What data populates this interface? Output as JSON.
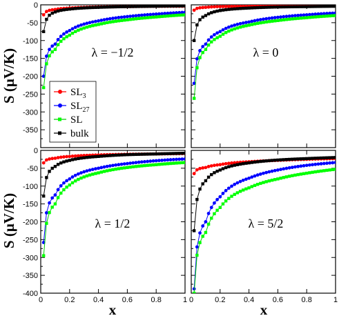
{
  "figure": {
    "ylabel_main": "S (",
    "ylabel_mu": "μ",
    "ylabel_rest": "V/K)",
    "xlabel": "x"
  },
  "legend": {
    "items": [
      {
        "label": "SL",
        "sub": "3",
        "color": "#ff0000"
      },
      {
        "label": "SL",
        "sub": "27",
        "color": "#0000ff"
      },
      {
        "label": "SL",
        "sub": "",
        "color": "#00ff00"
      },
      {
        "label": "bulk",
        "sub": "",
        "color": "#000000"
      }
    ]
  },
  "chart_data": [
    {
      "type": "line",
      "panel": "top-left",
      "annotation": "λ = −1/2",
      "xlim": [
        0,
        1
      ],
      "ylim": [
        -400,
        0
      ],
      "xticks": [
        "0",
        "0.2",
        "0.4",
        "0.6",
        "0.8",
        "1"
      ],
      "yticks": [
        "0",
        "-50",
        "-100",
        "-150",
        "-200",
        "-250",
        "-300",
        "-350"
      ],
      "series": [
        {
          "name": "SL3",
          "color": "#ff0000",
          "x": [
            0.02,
            0.1,
            0.2,
            0.4,
            0.6,
            0.8,
            1.0
          ],
          "values": [
            -28,
            -13,
            -9,
            -6,
            -5,
            -4,
            -4
          ]
        },
        {
          "name": "SL27",
          "color": "#0000ff",
          "x": [
            0.02,
            0.1,
            0.2,
            0.4,
            0.6,
            0.8,
            1.0
          ],
          "values": [
            -200,
            -110,
            -72,
            -45,
            -33,
            -26,
            -21
          ]
        },
        {
          "name": "SL",
          "color": "#00ff00",
          "x": [
            0.02,
            0.1,
            0.2,
            0.4,
            0.6,
            0.8,
            1.0
          ],
          "values": [
            -232,
            -125,
            -85,
            -55,
            -42,
            -34,
            -28
          ]
        },
        {
          "name": "bulk",
          "color": "#000000",
          "x": [
            0.02,
            0.1,
            0.2,
            0.4,
            0.6,
            0.8,
            1.0
          ],
          "values": [
            -75,
            -20,
            -12,
            -7,
            -5,
            -4,
            -3
          ]
        }
      ]
    },
    {
      "type": "line",
      "panel": "top-right",
      "annotation": "λ = 0",
      "xlim": [
        0,
        1
      ],
      "ylim": [
        -400,
        0
      ],
      "xticks": [
        "0",
        "0.2",
        "0.4",
        "0.6",
        "0.8",
        "1"
      ],
      "yticks": [
        "0",
        "-50",
        "-100",
        "-150",
        "-200",
        "-250",
        "-300",
        "-350"
      ],
      "series": [
        {
          "name": "SL3",
          "color": "#ff0000",
          "x": [
            0.02,
            0.1,
            0.2,
            0.4,
            0.6,
            0.8,
            1.0
          ],
          "values": [
            -15,
            -7,
            -5,
            -4,
            -3,
            -3,
            -3
          ]
        },
        {
          "name": "SL27",
          "color": "#0000ff",
          "x": [
            0.02,
            0.1,
            0.2,
            0.4,
            0.6,
            0.8,
            1.0
          ],
          "values": [
            -220,
            -110,
            -75,
            -48,
            -35,
            -28,
            -23
          ]
        },
        {
          "name": "SL",
          "color": "#00ff00",
          "x": [
            0.02,
            0.1,
            0.2,
            0.4,
            0.6,
            0.8,
            1.0
          ],
          "values": [
            -262,
            -125,
            -88,
            -57,
            -44,
            -36,
            -30
          ]
        },
        {
          "name": "bulk",
          "color": "#000000",
          "x": [
            0.02,
            0.1,
            0.2,
            0.4,
            0.6,
            0.8,
            1.0
          ],
          "values": [
            -100,
            -30,
            -16,
            -9,
            -6,
            -5,
            -4
          ]
        }
      ]
    },
    {
      "type": "line",
      "panel": "bottom-left",
      "annotation": "λ = 1/2",
      "xlim": [
        0,
        1
      ],
      "ylim": [
        -400,
        0
      ],
      "xticks": [
        "0",
        "0.2",
        "0.4",
        "0.6",
        "0.8",
        "1"
      ],
      "yticks": [
        "0",
        "-50",
        "-100",
        "-150",
        "-200",
        "-250",
        "-300",
        "-350",
        "-400"
      ],
      "series": [
        {
          "name": "SL3",
          "color": "#ff0000",
          "x": [
            0.02,
            0.1,
            0.2,
            0.4,
            0.6,
            0.8,
            1.0
          ],
          "values": [
            -35,
            -22,
            -17,
            -13,
            -11,
            -10,
            -9
          ]
        },
        {
          "name": "SL27",
          "color": "#0000ff",
          "x": [
            0.02,
            0.1,
            0.2,
            0.4,
            0.6,
            0.8,
            1.0
          ],
          "values": [
            -258,
            -125,
            -80,
            -50,
            -37,
            -29,
            -24
          ]
        },
        {
          "name": "SL",
          "color": "#00ff00",
          "x": [
            0.02,
            0.1,
            0.2,
            0.4,
            0.6,
            0.8,
            1.0
          ],
          "values": [
            -295,
            -150,
            -97,
            -63,
            -48,
            -40,
            -34
          ]
        },
        {
          "name": "bulk",
          "color": "#000000",
          "x": [
            0.02,
            0.1,
            0.2,
            0.4,
            0.6,
            0.8,
            1.0
          ],
          "values": [
            -128,
            -45,
            -28,
            -17,
            -12,
            -10,
            -8
          ]
        }
      ]
    },
    {
      "type": "line",
      "panel": "bottom-right",
      "annotation": "λ = 5/2",
      "xlim": [
        0,
        1
      ],
      "ylim": [
        -400,
        0
      ],
      "xticks": [
        "0",
        "0.2",
        "0.4",
        "0.6",
        "0.8",
        "1"
      ],
      "yticks": [
        "0",
        "-50",
        "-100",
        "-150",
        "-200",
        "-250",
        "-300",
        "-350",
        "-400"
      ],
      "series": [
        {
          "name": "SL3",
          "color": "#ff0000",
          "x": [
            0.02,
            0.1,
            0.2,
            0.4,
            0.6,
            0.8,
            1.0
          ],
          "values": [
            -65,
            -48,
            -40,
            -32,
            -28,
            -25,
            -23
          ]
        },
        {
          "name": "SL27",
          "color": "#0000ff",
          "x": [
            0.02,
            0.1,
            0.2,
            0.4,
            0.6,
            0.8,
            1.0
          ],
          "values": [
            -388,
            -200,
            -130,
            -78,
            -55,
            -42,
            -34
          ]
        },
        {
          "name": "SL",
          "color": "#00ff00",
          "x": [
            0.02,
            0.1,
            0.2,
            0.4,
            0.6,
            0.8,
            1.0
          ],
          "values": [
            -400,
            -230,
            -160,
            -105,
            -80,
            -64,
            -53
          ]
        },
        {
          "name": "bulk",
          "color": "#000000",
          "x": [
            0.02,
            0.1,
            0.2,
            0.4,
            0.6,
            0.8,
            1.0
          ],
          "values": [
            -225,
            -85,
            -55,
            -35,
            -27,
            -23,
            -20
          ]
        }
      ]
    }
  ]
}
